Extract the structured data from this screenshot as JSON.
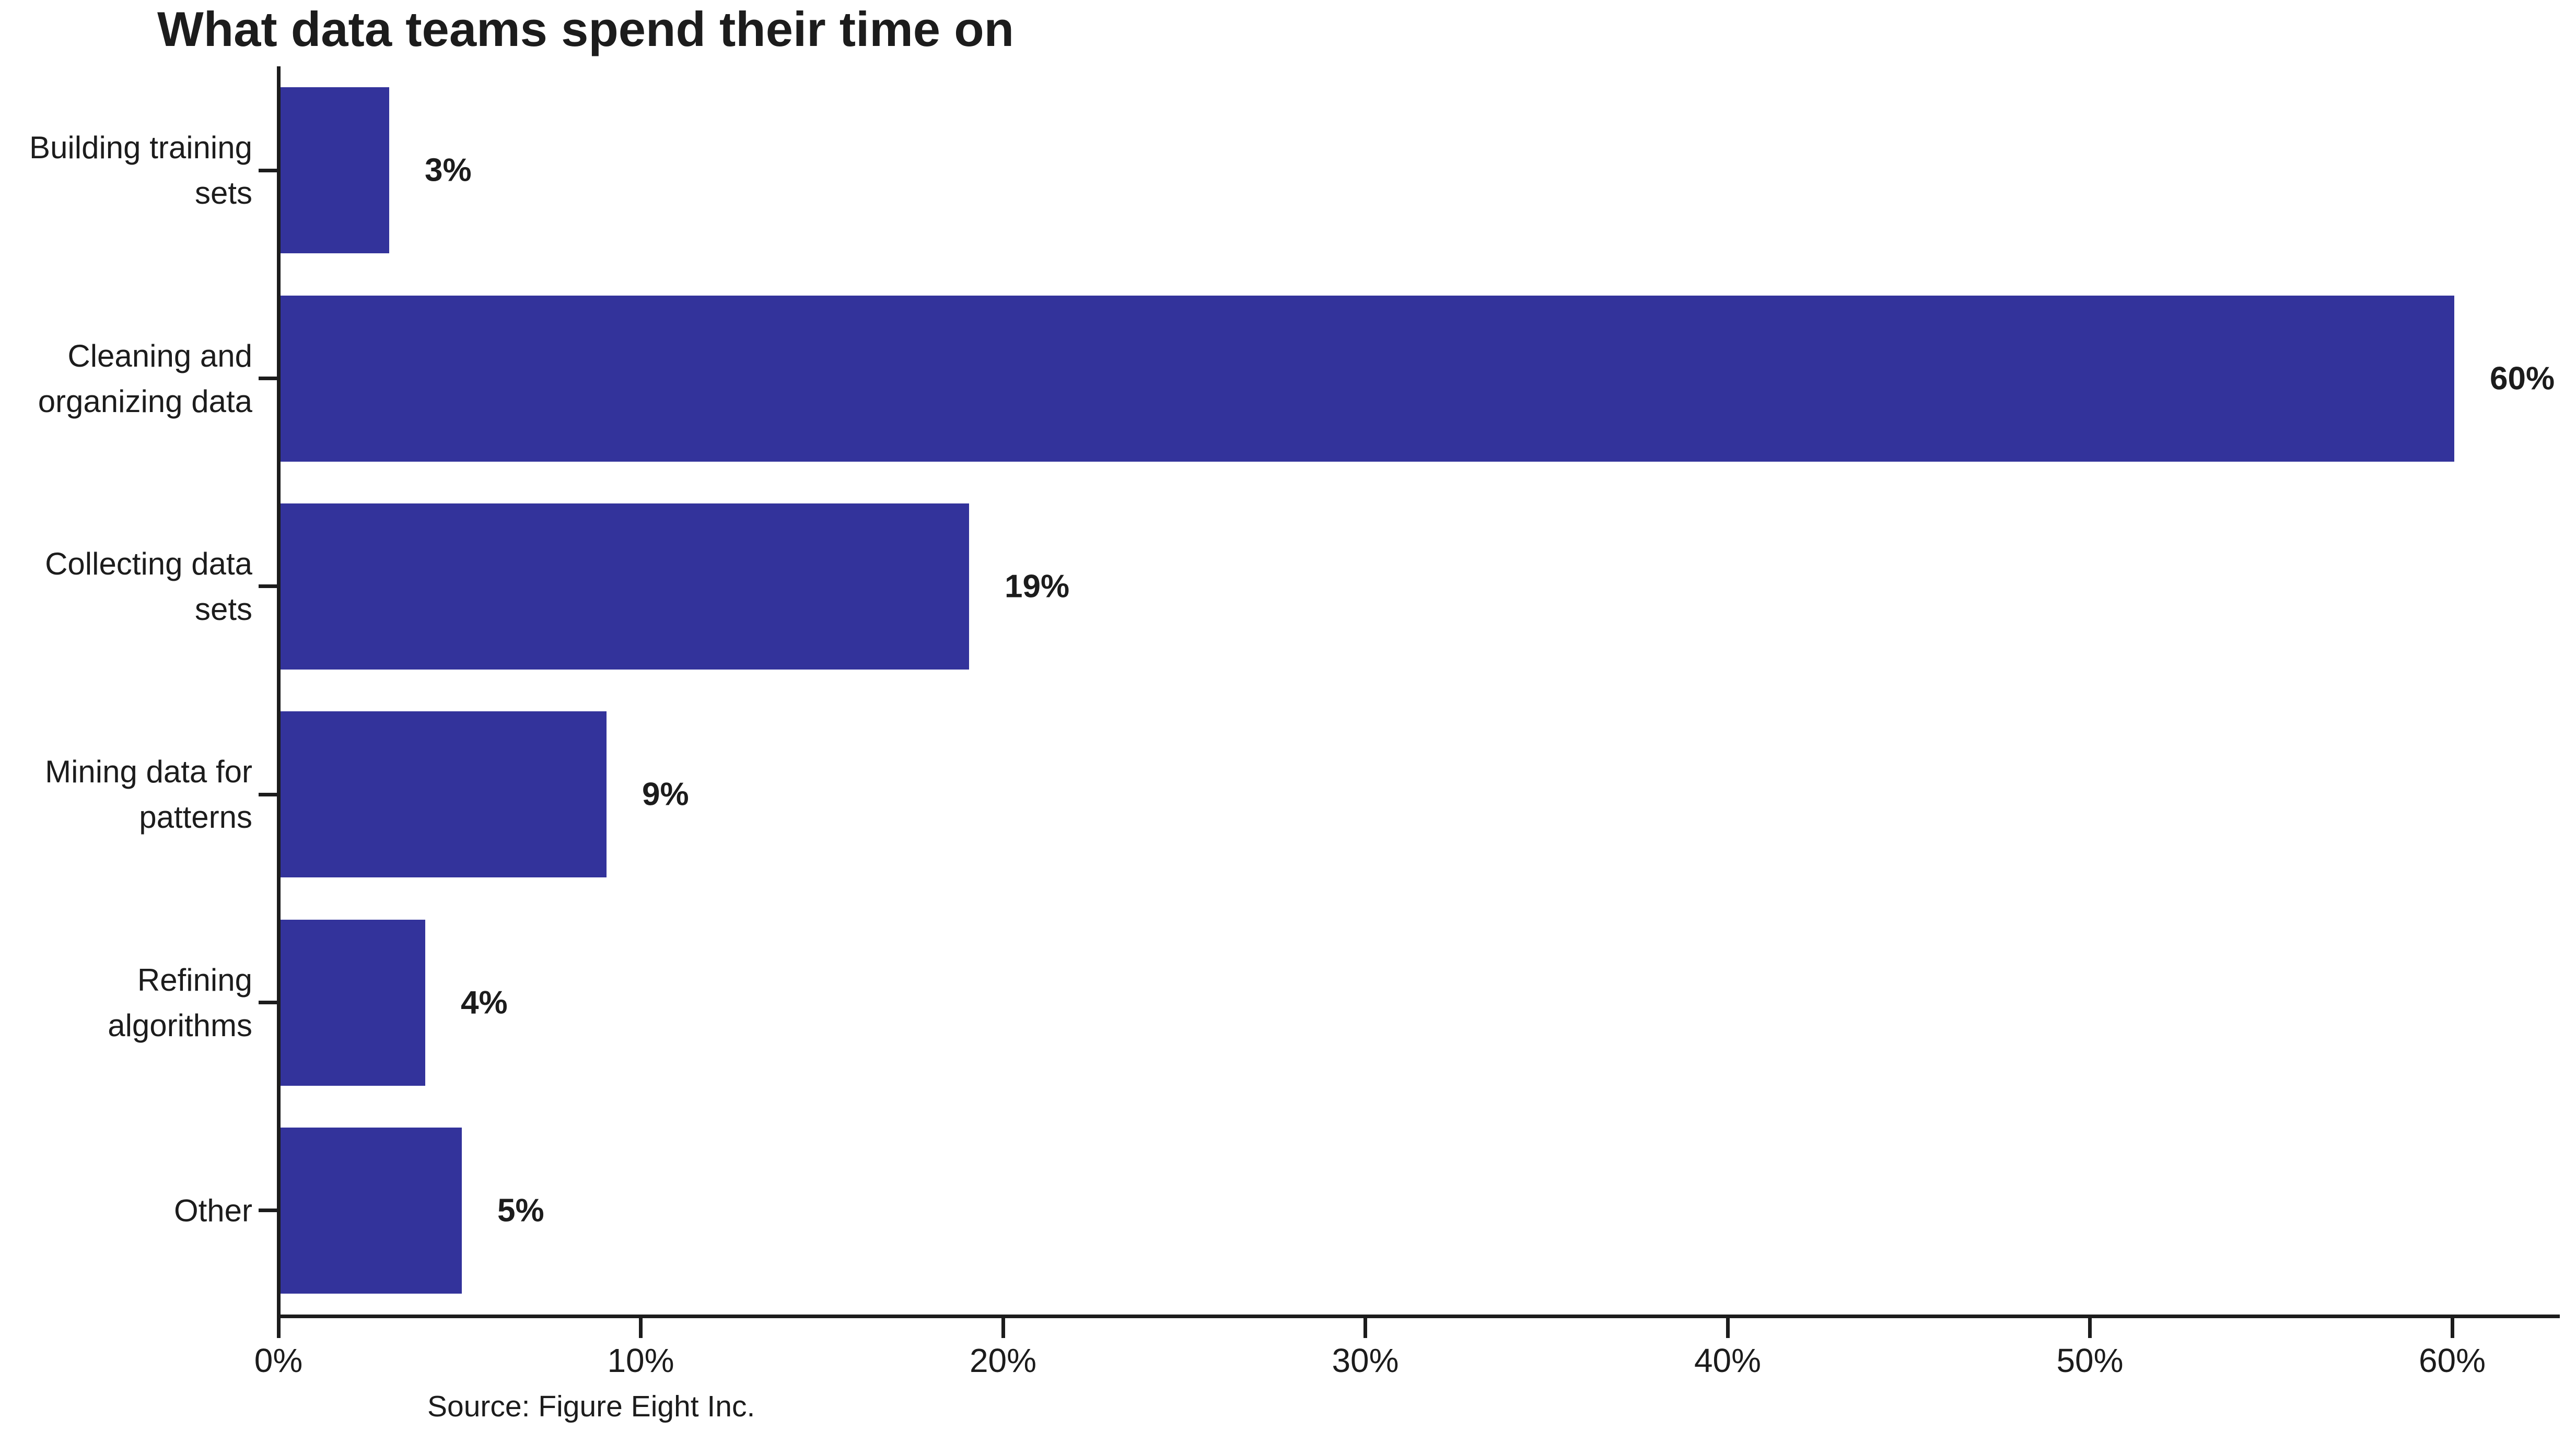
{
  "chart_data": {
    "type": "bar",
    "orientation": "horizontal",
    "title": "What data teams spend their time on",
    "source_note": "Source: Figure Eight Inc.",
    "categories": [
      "Building training sets",
      "Cleaning and organizing data",
      "Collecting data sets",
      "Mining data for patterns",
      "Refining algorithms",
      "Other"
    ],
    "category_labels_wrapped": [
      "Building training\nsets",
      "Cleaning and\norganizing data",
      "Collecting data\nsets",
      "Mining data for\npatterns",
      "Refining\nalgorithms",
      "Other"
    ],
    "values": [
      3,
      60,
      19,
      9,
      4,
      5
    ],
    "value_labels": [
      "3%",
      "60%",
      "19%",
      "9%",
      "4%",
      "5%"
    ],
    "xlabel": "",
    "ylabel": "",
    "xlim": [
      0,
      63
    ],
    "x_ticks": [
      0,
      10,
      20,
      30,
      40,
      50,
      60
    ],
    "x_tick_labels": [
      "0%",
      "10%",
      "20%",
      "30%",
      "40%",
      "50%",
      "60%"
    ],
    "grid": false,
    "legend": "none",
    "colors": {
      "bar": "#33339B",
      "text": "#1c1c1c",
      "axis": "#1c1c1c",
      "background": "#ffffff"
    }
  }
}
